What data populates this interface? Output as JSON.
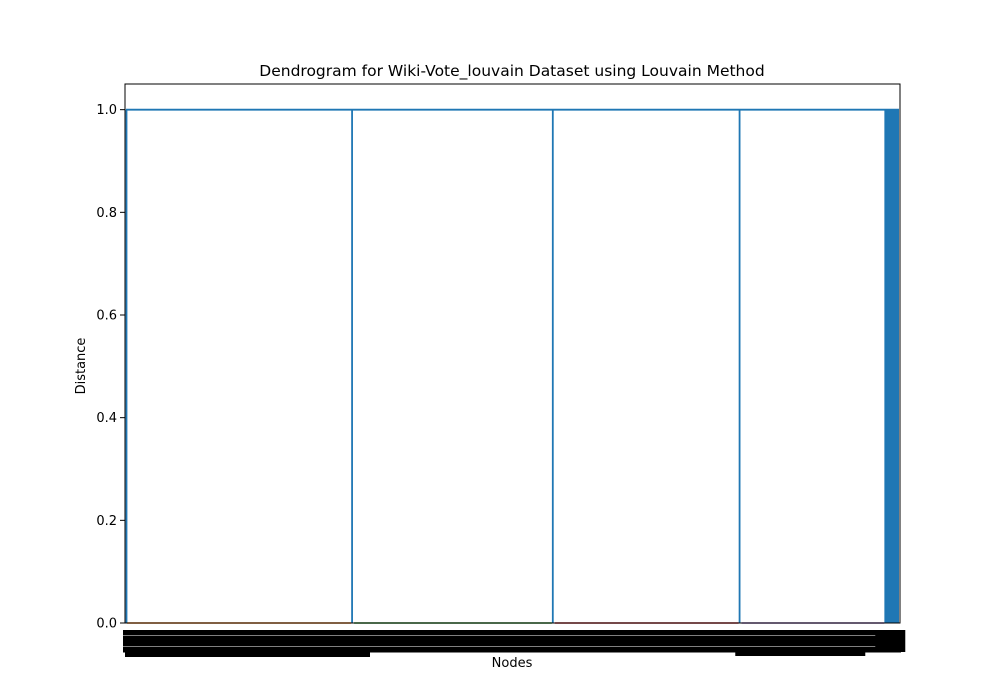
{
  "chart_data": {
    "type": "dendrogram",
    "title": "Dendrogram for Wiki-Vote_louvain Dataset using Louvain Method",
    "xlabel": "Nodes",
    "ylabel": "Distance",
    "ylim": [
      0,
      1.05
    ],
    "y_ticks": [
      "0.0",
      "0.2",
      "0.4",
      "0.6",
      "0.8",
      "1.0"
    ],
    "top_link_distance": 1.0,
    "top_link_color": "#1f77b4",
    "leaf_label_color": "#000000",
    "clusters": [
      {
        "color": "#ff7f0e",
        "leaf_fraction": 0.293,
        "merge_distance": 0.0
      },
      {
        "color": "#2ca02c",
        "leaf_fraction": 0.259,
        "merge_distance": 0.0
      },
      {
        "color": "#d62728",
        "leaf_fraction": 0.241,
        "merge_distance": 0.0
      },
      {
        "color": "#9467bd",
        "leaf_fraction": 0.188,
        "merge_distance": 0.0
      },
      {
        "color": "#1f77b4",
        "leaf_fraction": 0.019,
        "merge_distance": 1.0,
        "note_dense_singletons": true
      }
    ]
  }
}
